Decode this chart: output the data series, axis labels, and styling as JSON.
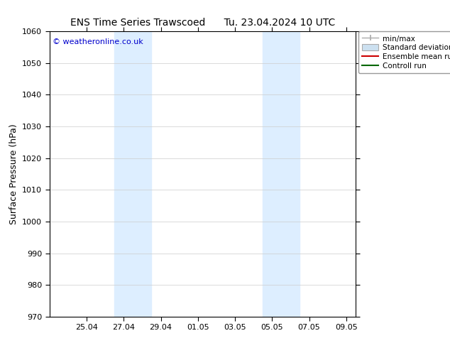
{
  "title_left": "ENS Time Series Trawscoed",
  "title_right": "Tu. 23.04.2024 10 UTC",
  "ylabel": "Surface Pressure (hPa)",
  "ylim": [
    970,
    1060
  ],
  "yticks": [
    970,
    980,
    990,
    1000,
    1010,
    1020,
    1030,
    1040,
    1050,
    1060
  ],
  "xtick_labels": [
    "25.04",
    "27.04",
    "29.04",
    "01.05",
    "03.05",
    "05.05",
    "07.05",
    "09.05"
  ],
  "xtick_positions": [
    2,
    4,
    6,
    8,
    10,
    12,
    14,
    16
  ],
  "xlim": [
    0,
    16.5
  ],
  "bg_color": "#ffffff",
  "plot_bg_color": "#ffffff",
  "shaded_bands": [
    {
      "x_start": 3.5,
      "x_end": 5.5
    },
    {
      "x_start": 11.5,
      "x_end": 13.5
    }
  ],
  "shaded_color": "#ddeeff",
  "copyright_text": "© weatheronline.co.uk",
  "copyright_color": "#0000cc",
  "copyright_fontsize": 8,
  "title_fontsize": 10,
  "ylabel_fontsize": 9,
  "tick_fontsize": 8,
  "legend_fontsize": 7.5,
  "grid_color": "#cccccc",
  "grid_linewidth": 0.5
}
